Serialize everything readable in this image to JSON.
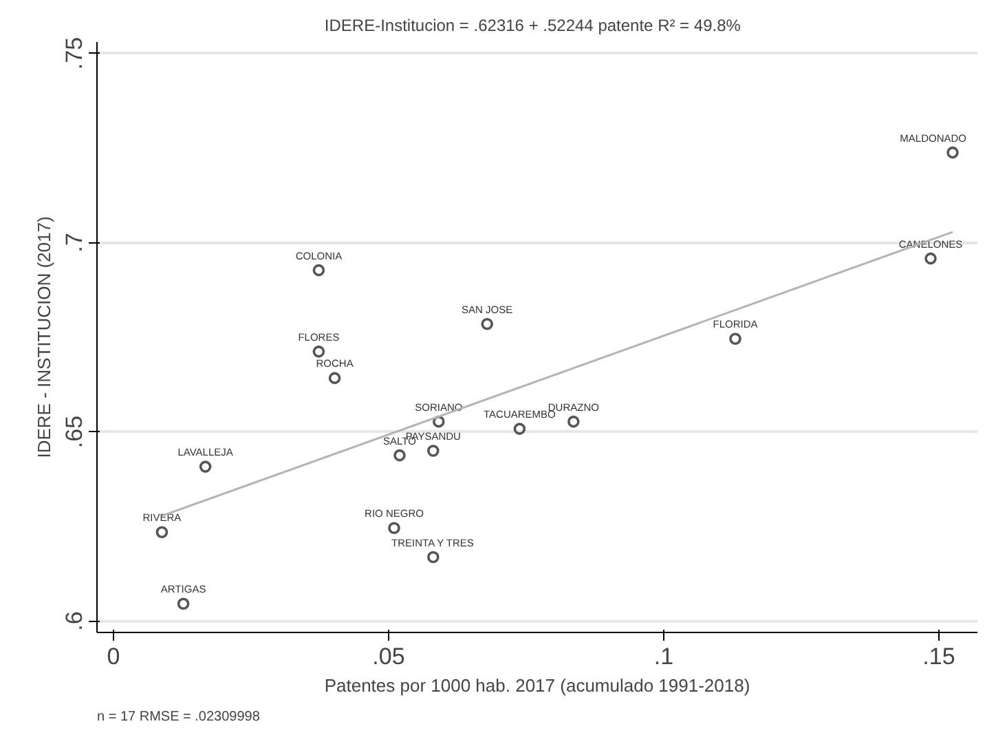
{
  "chart_data": {
    "type": "scatter",
    "title": "IDERE-Institucion = .62316 + .52244 patente   R² = 49.8%",
    "xlabel": "Patentes por 1000 hab. 2017 (acumulado 1991-2018)",
    "ylabel": "IDERE - INSTITUCION (2017)",
    "annotations": [
      "n = 17   RMSE =  .02309998"
    ],
    "xlim": [
      -0.003,
      0.157
    ],
    "ylim": [
      0.597,
      0.753
    ],
    "xticks": [
      0,
      {
        "value": 0.05,
        "label": ".05"
      },
      {
        "value": 0.1,
        "label": ".1"
      },
      {
        "value": 0.15,
        "label": ".15"
      }
    ],
    "yticks": [
      {
        "value": 0.6,
        "label": ".6"
      },
      {
        "value": 0.65,
        "label": ".65"
      },
      {
        "value": 0.7,
        "label": ".7"
      },
      {
        "value": 0.75,
        "label": ".75"
      }
    ],
    "grid": "y",
    "marker": "circle",
    "series": [
      {
        "color": "#555555",
        "x": [
          0.0373,
          0.0373,
          0.0402,
          0.0167,
          0.0088,
          0.0127,
          0.052,
          0.0581,
          0.0591,
          0.051,
          0.0581,
          0.0679,
          0.0738,
          0.0836,
          0.113,
          0.1485,
          0.1525
        ],
        "values": [
          0.6927,
          0.6712,
          0.6642,
          0.6408,
          0.6235,
          0.6046,
          0.6438,
          0.645,
          0.6527,
          0.6246,
          0.6169,
          0.6785,
          0.6508,
          0.6527,
          0.6746,
          0.6958,
          0.7238
        ],
        "value_labels": [
          "COLONIA",
          "FLORES",
          "ROCHA",
          "LAVALLEJA",
          "RIVERA",
          "ARTIGAS",
          "SALTO",
          "PAYSANDU",
          "SORIANO",
          "RIO NEGRO",
          "TREINTA Y TRES",
          "SAN JOSE",
          "TACUAREMBO",
          "DURAZNO",
          "FLORIDA",
          "CANELONES",
          "MALDONADO"
        ]
      },
      {
        "type": "line",
        "color": "#b4b4b4",
        "line_style": "solid",
        "marker": "none",
        "x": [
          0.0088,
          0.1525
        ],
        "values": [
          0.6278,
          0.7028
        ]
      }
    ]
  }
}
